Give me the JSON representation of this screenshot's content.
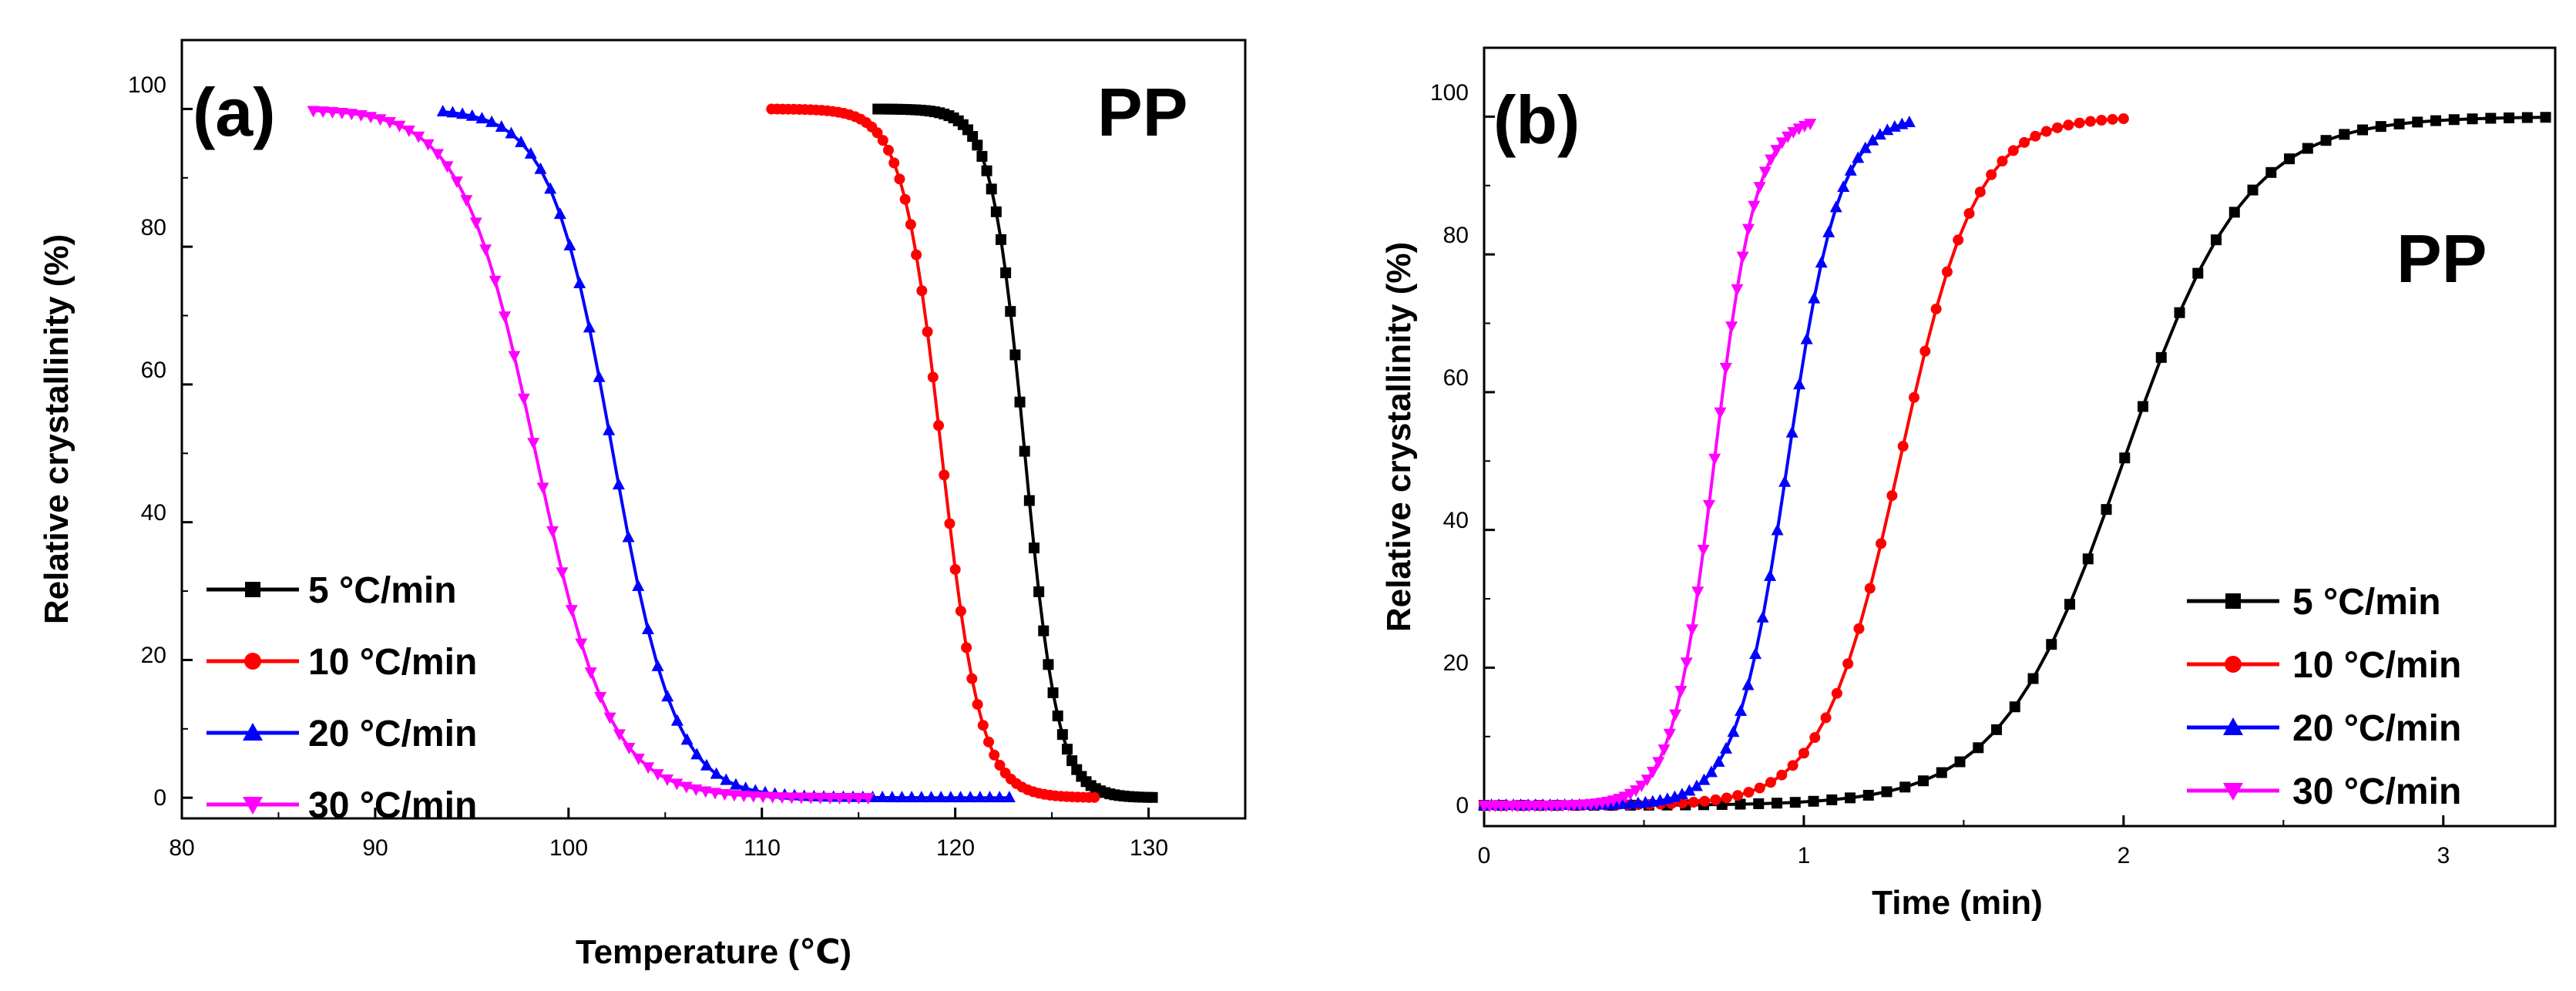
{
  "colors": {
    "s5": "#000000",
    "s10": "#ff0000",
    "s20": "#0000ff",
    "s30": "#ff00ff"
  },
  "chart_data": [
    {
      "type": "line",
      "panel": "(a)",
      "annotation": "PP",
      "xlabel": "Temperature (℃)",
      "ylabel": "Relative crystallinity (%)",
      "xlim": [
        80,
        135
      ],
      "ylim": [
        -3,
        110
      ],
      "xticks": [
        "80",
        "90",
        "100",
        "110",
        "120",
        "130"
      ],
      "yticks": [
        "0",
        "20",
        "40",
        "60",
        "80",
        "100"
      ],
      "legend_position": "lower-left",
      "series": [
        {
          "name": "5 °C/min",
          "marker": "square",
          "shape": "falling",
          "start": 116.0,
          "end": 130.2,
          "mid": 123.6,
          "width": 0.85
        },
        {
          "name": "10 °C/min",
          "marker": "circle",
          "shape": "falling",
          "start": 110.5,
          "end": 127.2,
          "mid": 119.3,
          "width": 1.0
        },
        {
          "name": "20 °C/min",
          "marker": "triangle-up",
          "shape": "falling",
          "start": 93.5,
          "end": 122.8,
          "mid": 102.3,
          "width": 1.6
        },
        {
          "name": "30 °C/min",
          "marker": "triangle-down",
          "shape": "falling",
          "start": 86.8,
          "end": 115.5,
          "mid": 98.3,
          "width": 1.9
        }
      ]
    },
    {
      "type": "line",
      "panel": "(b)",
      "annotation": "PP",
      "xlabel": "Time (min)",
      "ylabel": "Relative crystallinity (%)",
      "xlim": [
        0,
        3.35
      ],
      "ylim": [
        -3,
        110
      ],
      "xticks": [
        "0",
        "1",
        "2",
        "3"
      ],
      "yticks": [
        "0",
        "20",
        "40",
        "60",
        "80",
        "100"
      ],
      "legend_position": "lower-right",
      "series": [
        {
          "name": "5 °C/min",
          "marker": "square",
          "shape": "rising",
          "start": 0.0,
          "end": 3.32,
          "mid": 2.0,
          "width": 0.19
        },
        {
          "name": "10 °C/min",
          "marker": "circle",
          "shape": "rising",
          "start": 0.0,
          "end": 2.0,
          "mid": 1.3,
          "width": 0.12
        },
        {
          "name": "20 °C/min",
          "marker": "triangle-up",
          "shape": "rising",
          "start": 0.0,
          "end": 1.33,
          "mid": 0.95,
          "width": 0.08
        },
        {
          "name": "30 °C/min",
          "marker": "triangle-down",
          "shape": "rising",
          "start": 0.0,
          "end": 1.02,
          "mid": 0.72,
          "width": 0.065
        }
      ]
    }
  ]
}
